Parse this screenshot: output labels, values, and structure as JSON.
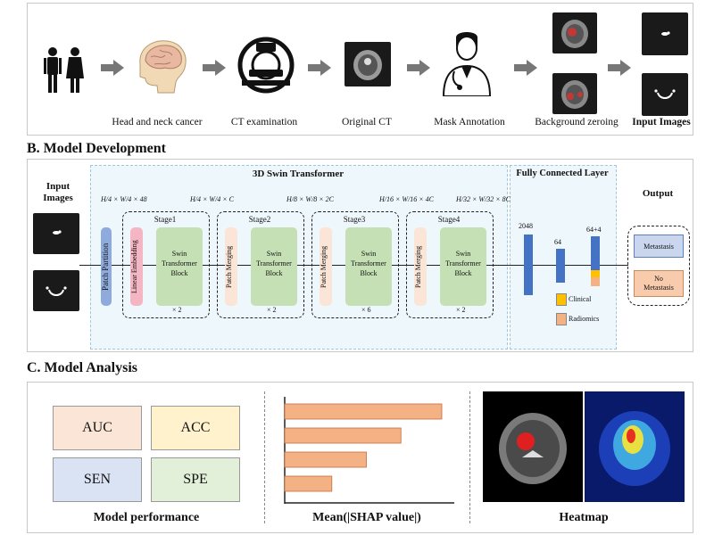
{
  "panelA": {
    "steps": [
      {
        "label": "Head and neck cancer"
      },
      {
        "label": "CT examination"
      },
      {
        "label": "Original CT"
      },
      {
        "label": "Mask Annotation"
      },
      {
        "label": "Background zeroing"
      },
      {
        "label": "Input Images"
      }
    ]
  },
  "panelB": {
    "title": "B. Model Development",
    "input_label": "Input\nImages",
    "swin_title": "3D Swin Transformer",
    "fc_title": "Fully Connected Layer",
    "output_label": "Output",
    "patch_partition": "Patch Partition",
    "linear_embedding": "Linear Embedding",
    "patch_merging": "Patch Merging",
    "swin_block": "Swin\nTransformer\nBlock",
    "stages": [
      {
        "name": "Stage1",
        "repeat": "× 2",
        "dim": "H/4 × W/4 × C"
      },
      {
        "name": "Stage2",
        "repeat": "× 2",
        "dim": "H/8 × W/8 × 2C"
      },
      {
        "name": "Stage3",
        "repeat": "× 6",
        "dim": "H/16 × W/16 × 4C"
      },
      {
        "name": "Stage4",
        "repeat": "× 2",
        "dim": "H/32 × W/32 × 8C"
      }
    ],
    "dim0": "H/4 × W/4 × 48",
    "fc_sizes": [
      "2048",
      "64",
      "64+4"
    ],
    "clinical": "Clinical",
    "radiomics": "Radiomics",
    "outputs": [
      "Metastasis",
      "No\nMetastasis"
    ]
  },
  "panelC": {
    "title": "C. Model Analysis",
    "metrics": [
      "AUC",
      "ACC",
      "SEN",
      "SPE"
    ],
    "perf_caption": "Model performance",
    "shap_caption": "Mean(|SHAP value|)",
    "heatmap_caption": "Heatmap"
  },
  "chart_data": {
    "type": "bar",
    "orientation": "horizontal",
    "values": [
      1.0,
      0.74,
      0.52,
      0.3
    ],
    "xlabel": "Mean(|SHAP value|)",
    "color": "#f4b183"
  },
  "colors": {
    "patch_partition": "#8faadc",
    "linear_embedding": "#f4b6c2",
    "patch_merging": "#fbe5d6",
    "swin_block": "#c5e0b4",
    "fc_bar": "#4472c4",
    "clinical": "#ffc000",
    "radiomics": "#f4b183"
  }
}
